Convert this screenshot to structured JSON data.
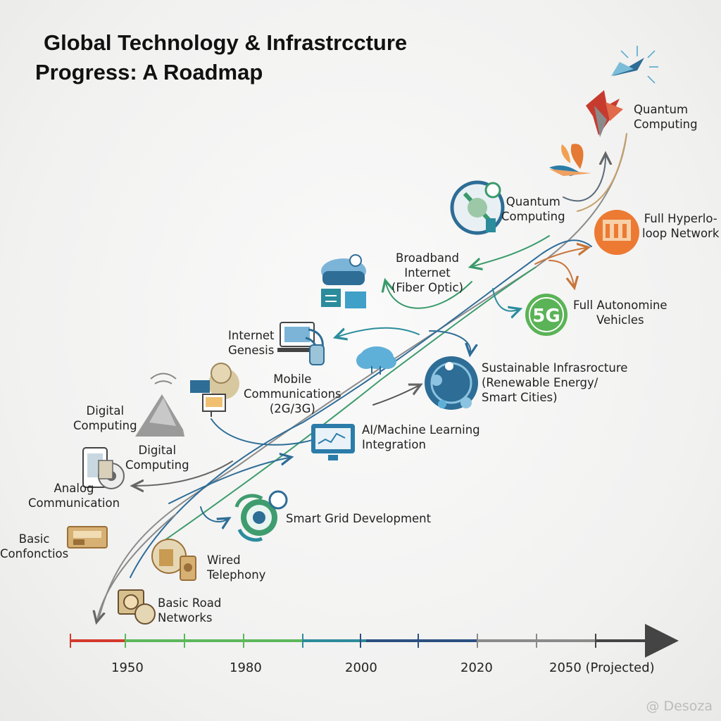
{
  "title": {
    "line1": "Global Technology & Infrastrccture",
    "line2": "Progress: A Roadmap"
  },
  "milestones": {
    "quantum_computing_top": [
      "Quantum",
      "Computing"
    ],
    "quantum_computing_mid": [
      "Quantum",
      "Computing"
    ],
    "full_hyperloop": [
      "Full Hyperlo-",
      "loop Network"
    ],
    "broadband": [
      "Broadband",
      "Internet",
      "(Fiber Optic)"
    ],
    "full_autonomine": [
      "Full Autonomine",
      "Vehicles"
    ],
    "internet_genesis": [
      "Internet",
      "Genesis"
    ],
    "sustainable": [
      "Sustainable Infrasrocture",
      "(Renewable Energy/",
      "Smart Cities)"
    ],
    "mobile_comms": [
      "Mobile",
      "Communications",
      "(2G/3G)"
    ],
    "digital_computing_upper": [
      "Digital",
      "Computing"
    ],
    "digital_computing_lower": [
      "Digital",
      "Computing"
    ],
    "ai_ml": [
      "AI/Machine Learning",
      "Integration"
    ],
    "analog_comm": [
      "Analog",
      "Communication"
    ],
    "smart_grid": [
      "Smart Grid Development"
    ],
    "basic_connections": [
      "Basic",
      "Confonctios"
    ],
    "wired_telephony": [
      "Wired",
      "Telephony"
    ],
    "basic_road": [
      "Basic Road",
      "Networks"
    ]
  },
  "badge_5g": "5G",
  "timeline": {
    "ticks": [
      "1950",
      "1980",
      "2000",
      "2020",
      "2050 (Projected)"
    ],
    "colors": [
      "#d33a2c",
      "#5cb85c",
      "#2e8b9a",
      "#2b4f80",
      "#8a8a8a",
      "#444444"
    ]
  },
  "watermark": "@ Desoza"
}
